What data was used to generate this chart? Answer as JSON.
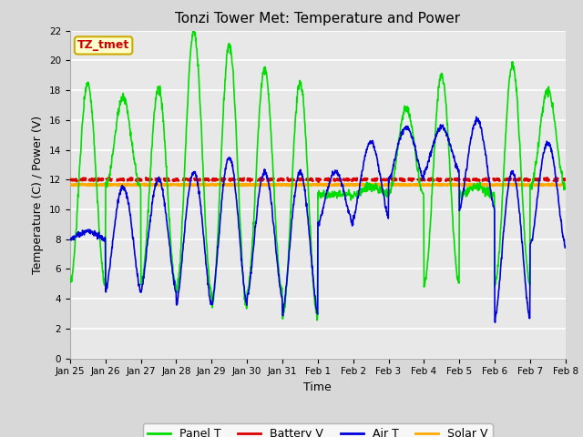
{
  "title": "Tonzi Tower Met: Temperature and Power",
  "xlabel": "Time",
  "ylabel": "Temperature (C) / Power (V)",
  "ylim": [
    0,
    22
  ],
  "yticks": [
    0,
    2,
    4,
    6,
    8,
    10,
    12,
    14,
    16,
    18,
    20,
    22
  ],
  "xtick_labels": [
    "Jan 25",
    "Jan 26",
    "Jan 27",
    "Jan 28",
    "Jan 29",
    "Jan 30",
    "Jan 31",
    "Feb 1",
    "Feb 2",
    "Feb 3",
    "Feb 4",
    "Feb 5",
    "Feb 6",
    "Feb 7",
    "Feb 8"
  ],
  "bg_color": "#d8d8d8",
  "plot_bg": "#e8e8e8",
  "grid_color": "#ffffff",
  "panel_T_color": "#00dd00",
  "battery_V_color": "#dd0000",
  "air_T_color": "#0000dd",
  "solar_V_color": "#ffaa00",
  "annotation_text": "TZ_tmet",
  "annotation_bg": "#ffffcc",
  "annotation_border": "#ccaa00"
}
